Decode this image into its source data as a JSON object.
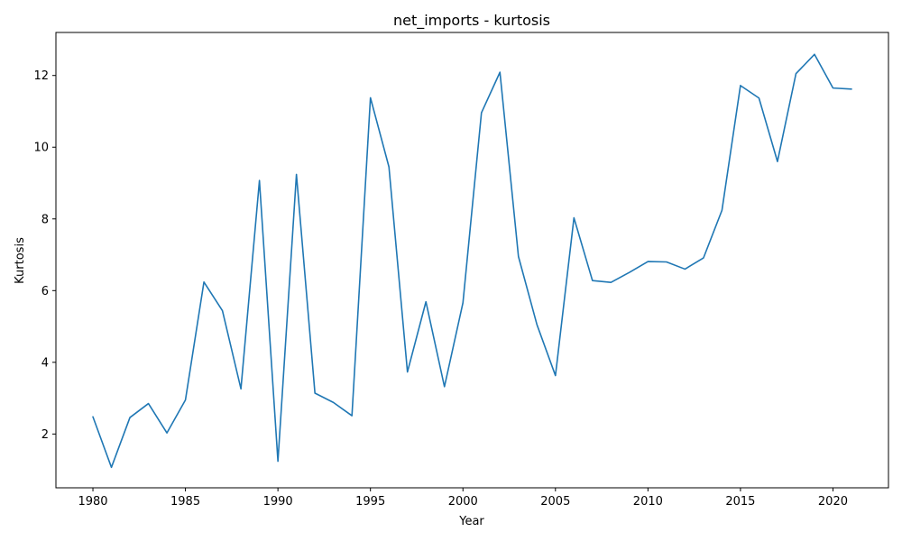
{
  "chart_data": {
    "type": "line",
    "title": "net_imports - kurtosis",
    "xlabel": "Year",
    "ylabel": "Kurtosis",
    "xlim": [
      1978,
      2023
    ],
    "ylim": [
      0.5,
      13.2
    ],
    "grid": false,
    "x_ticks": [
      1980,
      1985,
      1990,
      1995,
      2000,
      2005,
      2010,
      2015,
      2020
    ],
    "y_ticks": [
      2,
      4,
      6,
      8,
      10,
      12
    ],
    "series": [
      {
        "color": "#1f77b4",
        "x": [
          1980,
          1981,
          1982,
          1983,
          1984,
          1985,
          1986,
          1987,
          1988,
          1989,
          1990,
          1991,
          1992,
          1993,
          1994,
          1995,
          1996,
          1997,
          1998,
          1999,
          2000,
          2001,
          2002,
          2003,
          2004,
          2005,
          2006,
          2007,
          2008,
          2009,
          2010,
          2011,
          2012,
          2013,
          2014,
          2015,
          2016,
          2017,
          2018,
          2019,
          2020,
          2021
        ],
        "values": [
          2.48,
          1.07,
          2.46,
          2.85,
          2.03,
          2.95,
          6.24,
          5.44,
          3.26,
          9.07,
          1.24,
          9.24,
          3.14,
          2.88,
          2.51,
          11.38,
          9.45,
          3.73,
          5.69,
          3.32,
          5.66,
          10.96,
          12.09,
          6.95,
          5.05,
          3.63,
          8.03,
          6.28,
          6.23,
          6.51,
          6.81,
          6.8,
          6.6,
          6.91,
          8.24,
          11.72,
          11.37,
          9.6,
          12.05,
          12.59,
          11.65,
          11.62
        ]
      }
    ]
  }
}
